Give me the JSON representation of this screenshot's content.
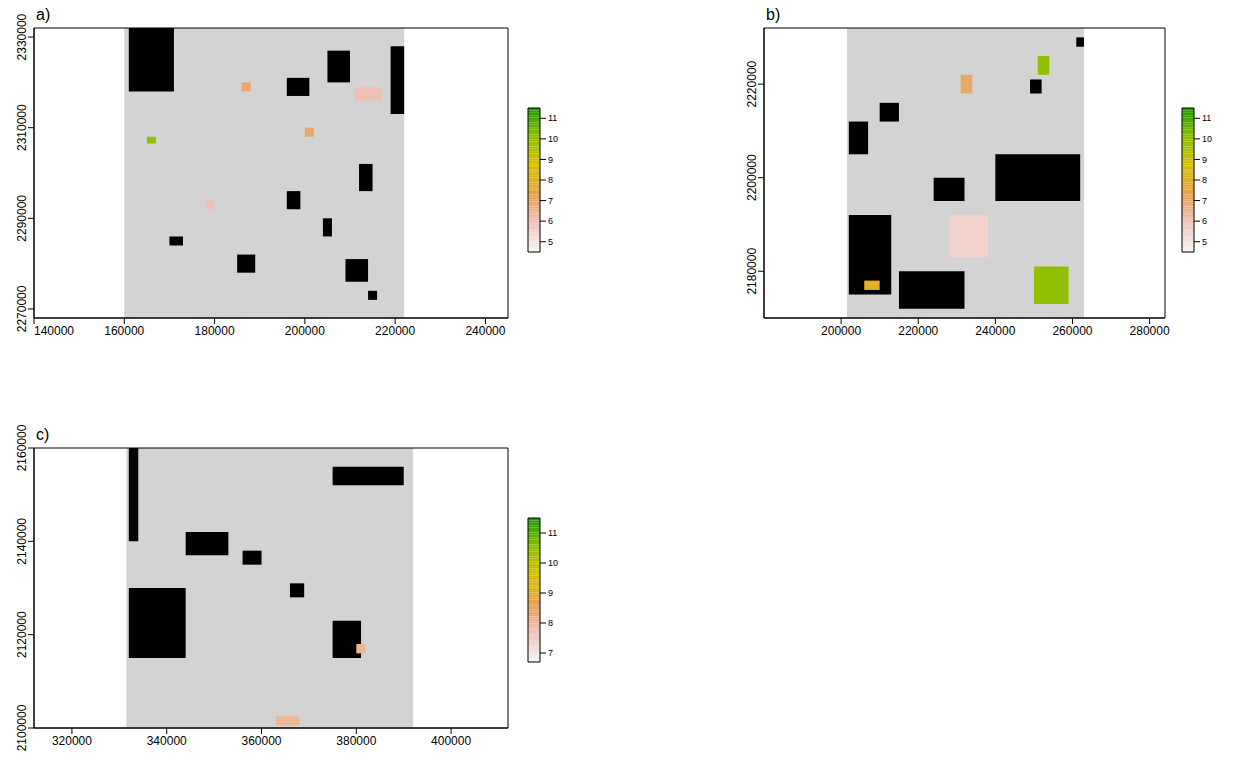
{
  "chart_data": [
    {
      "type": "raster",
      "title": "a)",
      "xlim": [
        140000,
        245000
      ],
      "xticks": [
        140000,
        160000,
        180000,
        200000,
        220000,
        240000
      ],
      "ylim": [
        2268000,
        2332000
      ],
      "yticks": [
        2270000,
        2290000,
        2310000,
        2330000
      ],
      "extent": {
        "x": [
          160000,
          222000
        ],
        "y": [
          2268000,
          2332000
        ],
        "color": "#d3d3d3"
      },
      "nodata_color": "#000000",
      "nodata_areas": [
        {
          "x": [
            161000,
            171000
          ],
          "y": [
            2318000,
            2332000
          ]
        },
        {
          "x": [
            219000,
            222000
          ],
          "y": [
            2313000,
            2328000
          ]
        },
        {
          "x": [
            205000,
            210000
          ],
          "y": [
            2320000,
            2327000
          ]
        },
        {
          "x": [
            196000,
            201000
          ],
          "y": [
            2317000,
            2321000
          ]
        },
        {
          "x": [
            185000,
            189000
          ],
          "y": [
            2278000,
            2282000
          ]
        },
        {
          "x": [
            209000,
            214000
          ],
          "y": [
            2276000,
            2281000
          ]
        },
        {
          "x": [
            196000,
            199000
          ],
          "y": [
            2292000,
            2296000
          ]
        },
        {
          "x": [
            212000,
            215000
          ],
          "y": [
            2296000,
            2302000
          ]
        },
        {
          "x": [
            170000,
            173000
          ],
          "y": [
            2284000,
            2286000
          ]
        },
        {
          "x": [
            214000,
            216000
          ],
          "y": [
            2272000,
            2274000
          ]
        },
        {
          "x": [
            204000,
            206000
          ],
          "y": [
            2286000,
            2290000
          ]
        }
      ],
      "value_areas": [
        {
          "x": [
            165000,
            167000
          ],
          "y": [
            2306500,
            2308000
          ],
          "value": 10
        },
        {
          "x": [
            211000,
            217000
          ],
          "y": [
            2316000,
            2319000
          ],
          "value": 6
        },
        {
          "x": [
            178000,
            180000
          ],
          "y": [
            2292000,
            2294000
          ],
          "value": 6
        },
        {
          "x": [
            200000,
            202000
          ],
          "y": [
            2308000,
            2310000
          ],
          "value": 7
        },
        {
          "x": [
            186000,
            188000
          ],
          "y": [
            2318000,
            2320000
          ],
          "value": 7
        }
      ],
      "colorbar": {
        "range": [
          4.5,
          11.5
        ],
        "ticks": [
          5,
          6,
          7,
          8,
          9,
          10,
          11
        ],
        "colors": [
          "#f4f4f4",
          "#f0c4bc",
          "#e8a050",
          "#d8c000",
          "#8cc000",
          "#1a9a00"
        ]
      }
    },
    {
      "type": "raster",
      "title": "b)",
      "xlim": [
        180000,
        284000
      ],
      "xticks": [
        200000,
        220000,
        240000,
        260000,
        280000
      ],
      "ylim": [
        2170000,
        2232000
      ],
      "yticks": [
        2180000,
        2200000,
        2220000
      ],
      "extent": {
        "x": [
          201500,
          263000
        ],
        "y": [
          2170000,
          2232000
        ],
        "color": "#d3d3d3"
      },
      "nodata_color": "#000000",
      "nodata_areas": [
        {
          "x": [
            215000,
            232000
          ],
          "y": [
            2172000,
            2180000
          ]
        },
        {
          "x": [
            202000,
            213000
          ],
          "y": [
            2175000,
            2192000
          ]
        },
        {
          "x": [
            240000,
            262000
          ],
          "y": [
            2195000,
            2205000
          ]
        },
        {
          "x": [
            224000,
            232000
          ],
          "y": [
            2195000,
            2200000
          ]
        },
        {
          "x": [
            202000,
            207000
          ],
          "y": [
            2205000,
            2212000
          ]
        },
        {
          "x": [
            210000,
            215000
          ],
          "y": [
            2212000,
            2216000
          ]
        },
        {
          "x": [
            249000,
            252000
          ],
          "y": [
            2218000,
            2221000
          ]
        },
        {
          "x": [
            261000,
            263000
          ],
          "y": [
            2228000,
            2230000
          ]
        }
      ],
      "value_areas": [
        {
          "x": [
            228000,
            238000
          ],
          "y": [
            2183000,
            2192000
          ],
          "value": 5.5
        },
        {
          "x": [
            250000,
            259000
          ],
          "y": [
            2173000,
            2181000
          ],
          "value": 10
        },
        {
          "x": [
            251000,
            254000
          ],
          "y": [
            2222000,
            2226000
          ],
          "value": 10
        },
        {
          "x": [
            206000,
            210000
          ],
          "y": [
            2176000,
            2178000
          ],
          "value": 8
        },
        {
          "x": [
            231000,
            234000
          ],
          "y": [
            2218000,
            2222000
          ],
          "value": 7
        }
      ],
      "colorbar": {
        "range": [
          4.5,
          11.5
        ],
        "ticks": [
          5,
          6,
          7,
          8,
          9,
          10,
          11
        ],
        "colors": [
          "#f4f4f4",
          "#f0c4bc",
          "#e8a050",
          "#d8c000",
          "#8cc000",
          "#1a9a00"
        ]
      }
    },
    {
      "type": "raster",
      "title": "c)",
      "xlim": [
        312000,
        412000
      ],
      "xticks": [
        320000,
        340000,
        360000,
        380000,
        400000
      ],
      "ylim": [
        2100000,
        2160000
      ],
      "yticks": [
        2100000,
        2120000,
        2140000,
        2160000
      ],
      "extent": {
        "x": [
          331500,
          392000
        ],
        "y": [
          2100000,
          2160000
        ],
        "color": "#d3d3d3"
      },
      "nodata_color": "#000000",
      "nodata_areas": [
        {
          "x": [
            332000,
            344000
          ],
          "y": [
            2115000,
            2130000
          ]
        },
        {
          "x": [
            375000,
            390000
          ],
          "y": [
            2152000,
            2156000
          ]
        },
        {
          "x": [
            344000,
            353000
          ],
          "y": [
            2137000,
            2142000
          ]
        },
        {
          "x": [
            375000,
            381000
          ],
          "y": [
            2115000,
            2123000
          ]
        },
        {
          "x": [
            356000,
            360000
          ],
          "y": [
            2135000,
            2138000
          ]
        },
        {
          "x": [
            332000,
            334000
          ],
          "y": [
            2140000,
            2160000
          ]
        },
        {
          "x": [
            366000,
            369000
          ],
          "y": [
            2128000,
            2131000
          ]
        }
      ],
      "value_areas": [
        {
          "x": [
            363000,
            368000
          ],
          "y": [
            2100500,
            2102500
          ],
          "value": 8
        },
        {
          "x": [
            380000,
            382000
          ],
          "y": [
            2116000,
            2118000
          ],
          "value": 8
        }
      ],
      "colorbar": {
        "range": [
          6.7,
          11.5
        ],
        "ticks": [
          7,
          8,
          9,
          10,
          11
        ],
        "colors": [
          "#f4f4f4",
          "#f0c4bc",
          "#e8a050",
          "#d8c000",
          "#8cc000",
          "#1a9a00"
        ]
      }
    }
  ]
}
